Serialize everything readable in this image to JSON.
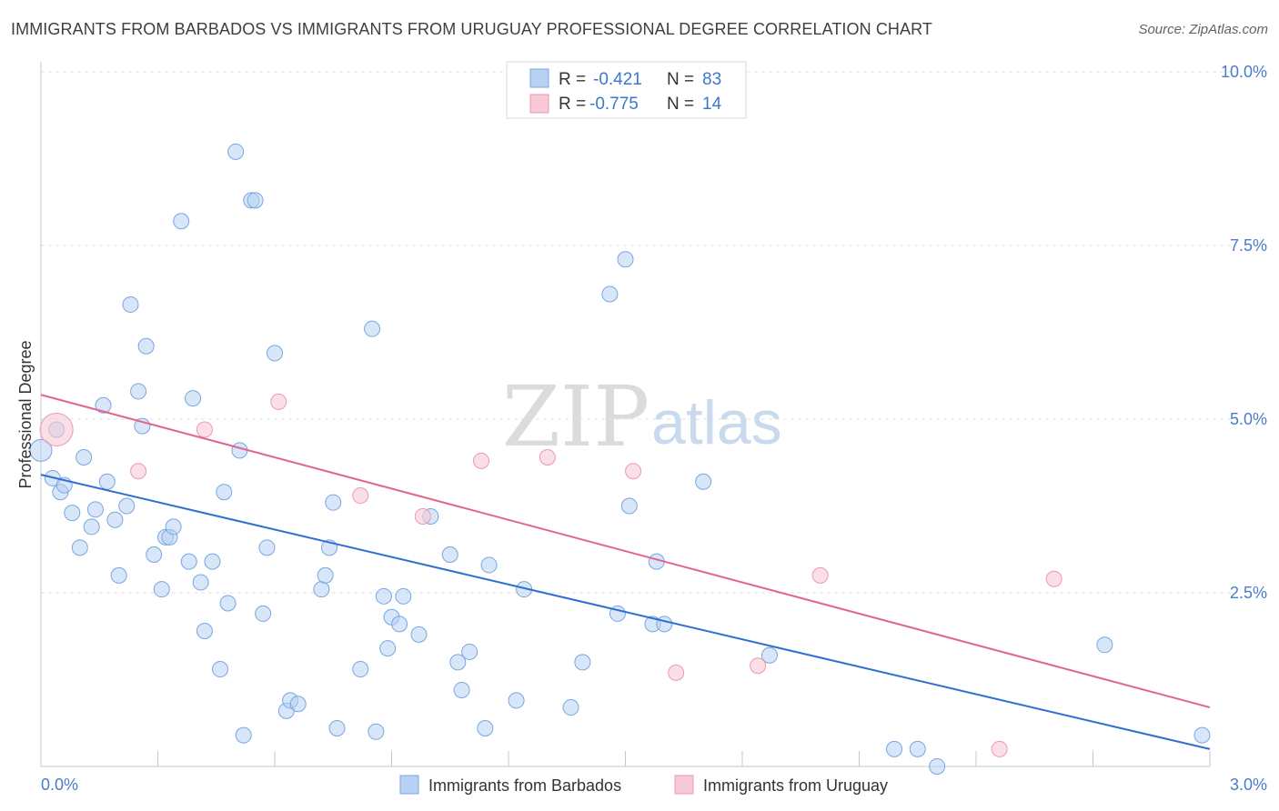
{
  "title": "IMMIGRANTS FROM BARBADOS VS IMMIGRANTS FROM URUGUAY PROFESSIONAL DEGREE CORRELATION CHART",
  "source": "Source: ZipAtlas.com",
  "watermark": {
    "zip": "ZIP",
    "atlas": "atlas"
  },
  "colors": {
    "barbados_fill": "#b7d1f3",
    "barbados_stroke": "#7aa6e0",
    "barbados_line": "#2f6fd0",
    "uruguay_fill": "#f8c9d6",
    "uruguay_stroke": "#ec98b1",
    "uruguay_line": "#e0668f",
    "grid": "#dfe1e5",
    "tick_text": "#4a7cc9"
  },
  "legend": {
    "rows": [
      {
        "r_label": "R =",
        "r_value": "-0.421",
        "n_label": "N =",
        "n_value": "83"
      },
      {
        "r_label": "R =",
        "r_value": "-0.775",
        "n_label": "N =",
        "n_value": "14"
      }
    ]
  },
  "chart_data": {
    "type": "scatter",
    "title": "IMMIGRANTS FROM BARBADOS VS IMMIGRANTS FROM URUGUAY PROFESSIONAL DEGREE CORRELATION CHART",
    "xlabel": "",
    "ylabel": "Professional Degree",
    "xlim": [
      0.0,
      3.0
    ],
    "ylim": [
      0.0,
      10.0
    ],
    "x_tick_labels": [
      "0.0%",
      "3.0%"
    ],
    "y_ticks": [
      2.5,
      5.0,
      7.5,
      10.0
    ],
    "y_tick_labels": [
      "2.5%",
      "5.0%",
      "7.5%",
      "10.0%"
    ],
    "grid": true,
    "legend_placement": "top-center",
    "series": [
      {
        "name": "Immigrants from Barbados",
        "color": "#b7d1f3",
        "points": [
          [
            0.0,
            4.55
          ],
          [
            0.03,
            4.15
          ],
          [
            0.04,
            4.85
          ],
          [
            0.05,
            3.95
          ],
          [
            0.06,
            4.05
          ],
          [
            0.08,
            3.65
          ],
          [
            0.1,
            3.15
          ],
          [
            0.11,
            4.45
          ],
          [
            0.13,
            3.45
          ],
          [
            0.14,
            3.7
          ],
          [
            0.16,
            5.2
          ],
          [
            0.17,
            4.1
          ],
          [
            0.19,
            3.55
          ],
          [
            0.2,
            2.75
          ],
          [
            0.22,
            3.75
          ],
          [
            0.23,
            6.65
          ],
          [
            0.25,
            5.4
          ],
          [
            0.26,
            4.9
          ],
          [
            0.27,
            6.05
          ],
          [
            0.29,
            3.05
          ],
          [
            0.31,
            2.55
          ],
          [
            0.32,
            3.3
          ],
          [
            0.33,
            3.3
          ],
          [
            0.34,
            3.45
          ],
          [
            0.36,
            7.85
          ],
          [
            0.38,
            2.95
          ],
          [
            0.39,
            5.3
          ],
          [
            0.41,
            2.65
          ],
          [
            0.42,
            1.95
          ],
          [
            0.44,
            2.95
          ],
          [
            0.46,
            1.4
          ],
          [
            0.47,
            3.95
          ],
          [
            0.48,
            2.35
          ],
          [
            0.5,
            8.85
          ],
          [
            0.51,
            4.55
          ],
          [
            0.52,
            0.45
          ],
          [
            0.54,
            8.15
          ],
          [
            0.55,
            8.15
          ],
          [
            0.57,
            2.2
          ],
          [
            0.58,
            3.15
          ],
          [
            0.6,
            5.95
          ],
          [
            0.63,
            0.8
          ],
          [
            0.64,
            0.95
          ],
          [
            0.66,
            0.9
          ],
          [
            0.72,
            2.55
          ],
          [
            0.73,
            2.75
          ],
          [
            0.74,
            3.15
          ],
          [
            0.75,
            3.8
          ],
          [
            0.76,
            0.55
          ],
          [
            0.82,
            1.4
          ],
          [
            0.85,
            6.3
          ],
          [
            0.86,
            0.5
          ],
          [
            0.88,
            2.45
          ],
          [
            0.89,
            1.7
          ],
          [
            0.9,
            2.15
          ],
          [
            0.92,
            2.05
          ],
          [
            0.93,
            2.45
          ],
          [
            0.97,
            1.9
          ],
          [
            1.0,
            3.6
          ],
          [
            1.05,
            3.05
          ],
          [
            1.07,
            1.5
          ],
          [
            1.08,
            1.1
          ],
          [
            1.1,
            1.65
          ],
          [
            1.14,
            0.55
          ],
          [
            1.15,
            2.9
          ],
          [
            1.22,
            0.95
          ],
          [
            1.24,
            2.55
          ],
          [
            1.36,
            0.85
          ],
          [
            1.39,
            1.5
          ],
          [
            1.46,
            6.8
          ],
          [
            1.48,
            2.2
          ],
          [
            1.5,
            7.3
          ],
          [
            1.51,
            3.75
          ],
          [
            1.57,
            2.05
          ],
          [
            1.58,
            2.95
          ],
          [
            1.6,
            2.05
          ],
          [
            1.7,
            4.1
          ],
          [
            1.87,
            1.6
          ],
          [
            2.19,
            0.25
          ],
          [
            2.25,
            0.25
          ],
          [
            2.3,
            0.0
          ],
          [
            2.73,
            1.75
          ],
          [
            2.98,
            0.45
          ]
        ],
        "trend": {
          "x": [
            0.0,
            3.0
          ],
          "y": [
            4.2,
            0.25
          ]
        }
      },
      {
        "name": "Immigrants from Uruguay",
        "color": "#f8c9d6",
        "points": [
          [
            0.04,
            4.85
          ],
          [
            0.25,
            4.25
          ],
          [
            0.42,
            4.85
          ],
          [
            0.61,
            5.25
          ],
          [
            0.82,
            3.9
          ],
          [
            0.98,
            3.6
          ],
          [
            1.13,
            4.4
          ],
          [
            1.3,
            4.45
          ],
          [
            1.52,
            4.25
          ],
          [
            1.63,
            1.35
          ],
          [
            1.84,
            1.45
          ],
          [
            2.0,
            2.75
          ],
          [
            2.46,
            0.25
          ],
          [
            2.6,
            2.7
          ]
        ],
        "trend": {
          "x": [
            0.0,
            3.0
          ],
          "y": [
            5.35,
            0.85
          ]
        }
      }
    ]
  },
  "bottom_legend": [
    {
      "label": "Immigrants from Barbados"
    },
    {
      "label": "Immigrants from Uruguay"
    }
  ]
}
